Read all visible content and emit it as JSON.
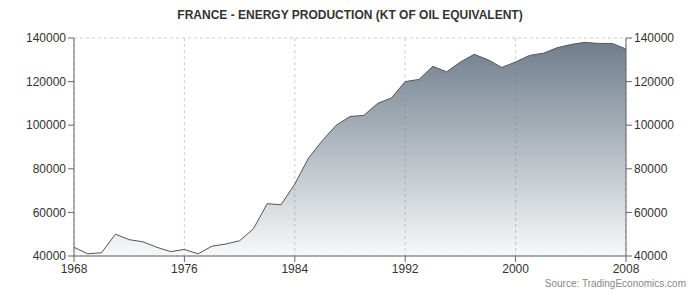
{
  "chart_data": {
    "type": "area",
    "title": "FRANCE - ENERGY PRODUCTION (KT OF OIL EQUIVALENT)",
    "source": "Source: TradingEconomics.com",
    "x": [
      1968,
      1969,
      1970,
      1971,
      1972,
      1973,
      1974,
      1975,
      1976,
      1977,
      1978,
      1979,
      1980,
      1981,
      1982,
      1983,
      1984,
      1985,
      1986,
      1987,
      1988,
      1989,
      1990,
      1991,
      1992,
      1993,
      1994,
      1995,
      1996,
      1997,
      1998,
      1999,
      2000,
      2001,
      2002,
      2003,
      2004,
      2005,
      2006,
      2007,
      2008
    ],
    "values": [
      44000,
      41000,
      41500,
      50000,
      47500,
      46500,
      44000,
      42000,
      43000,
      41000,
      44500,
      45500,
      47000,
      52500,
      64000,
      63500,
      73000,
      85000,
      93000,
      100000,
      104000,
      104500,
      110000,
      112500,
      120000,
      121000,
      127000,
      124500,
      129000,
      132500,
      130000,
      126500,
      129000,
      132000,
      133000,
      135500,
      137000,
      138000,
      137500,
      137500,
      135000
    ],
    "color": "#6f7e8c",
    "xlim": [
      1968,
      2008
    ],
    "xticks": [
      1968,
      1976,
      1984,
      1992,
      2000,
      2008
    ],
    "ylim": [
      40000,
      140000
    ],
    "yticks": [
      40000,
      60000,
      80000,
      100000,
      120000,
      140000
    ],
    "grid": true
  }
}
